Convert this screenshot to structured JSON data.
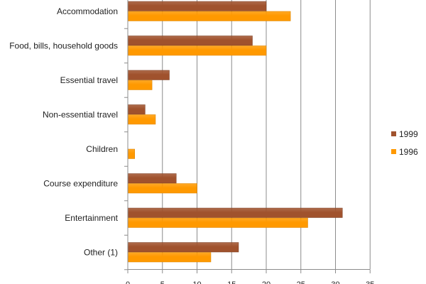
{
  "chart_data": {
    "type": "bar",
    "orientation": "horizontal",
    "title": "",
    "xlabel": "",
    "ylabel": "",
    "xlim": [
      0,
      35
    ],
    "grid": true,
    "legend_position": "right",
    "categories": [
      "Accommodation",
      "Food, bills, household goods",
      "Essential travel",
      "Non-essential travel",
      "Children",
      "Course expenditure",
      "Entertainment",
      "Other (1)"
    ],
    "x_ticks": [
      0,
      5,
      10,
      15,
      20,
      25,
      30,
      35
    ],
    "series": [
      {
        "name": "1999",
        "color": "#A0522D",
        "values": [
          20,
          18,
          6,
          2.5,
          0,
          7,
          31,
          16
        ]
      },
      {
        "name": "1996",
        "color": "#FF9900",
        "values": [
          23.5,
          20,
          3.5,
          4,
          1,
          10,
          26,
          12
        ]
      }
    ]
  }
}
